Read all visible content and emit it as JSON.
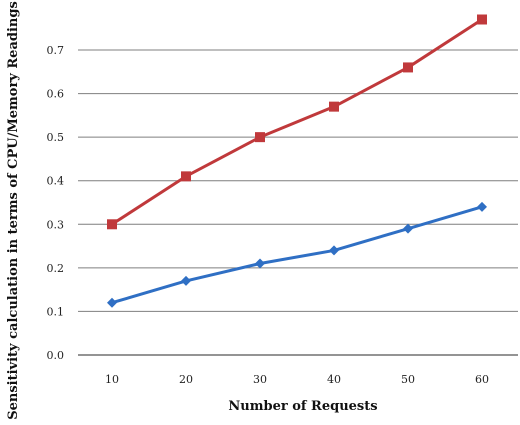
{
  "chart_data": {
    "type": "line",
    "title": "",
    "xlabel": "Number of Requests",
    "ylabel": "Sensitivity calculation in terms of CPU/Memory Readings",
    "x": [
      10,
      20,
      30,
      40,
      50,
      60
    ],
    "x_tick_labels": [
      "10",
      "20",
      "30",
      "40",
      "50",
      "60"
    ],
    "y_tick_labels": [
      "0.0",
      "0.1",
      "0.2",
      "0.3",
      "0.4",
      "0.5",
      "0.6",
      "0.7"
    ],
    "ylim": [
      0,
      0.7
    ],
    "grid": "horizontal",
    "legend": "none",
    "series": [
      {
        "color": "#c0393b",
        "marker": "square",
        "values": [
          0.3,
          0.41,
          0.5,
          0.57,
          0.66,
          0.77
        ]
      },
      {
        "color": "#2f6fc4",
        "marker": "diamond",
        "values": [
          0.12,
          0.17,
          0.21,
          0.24,
          0.29,
          0.34
        ]
      }
    ]
  }
}
